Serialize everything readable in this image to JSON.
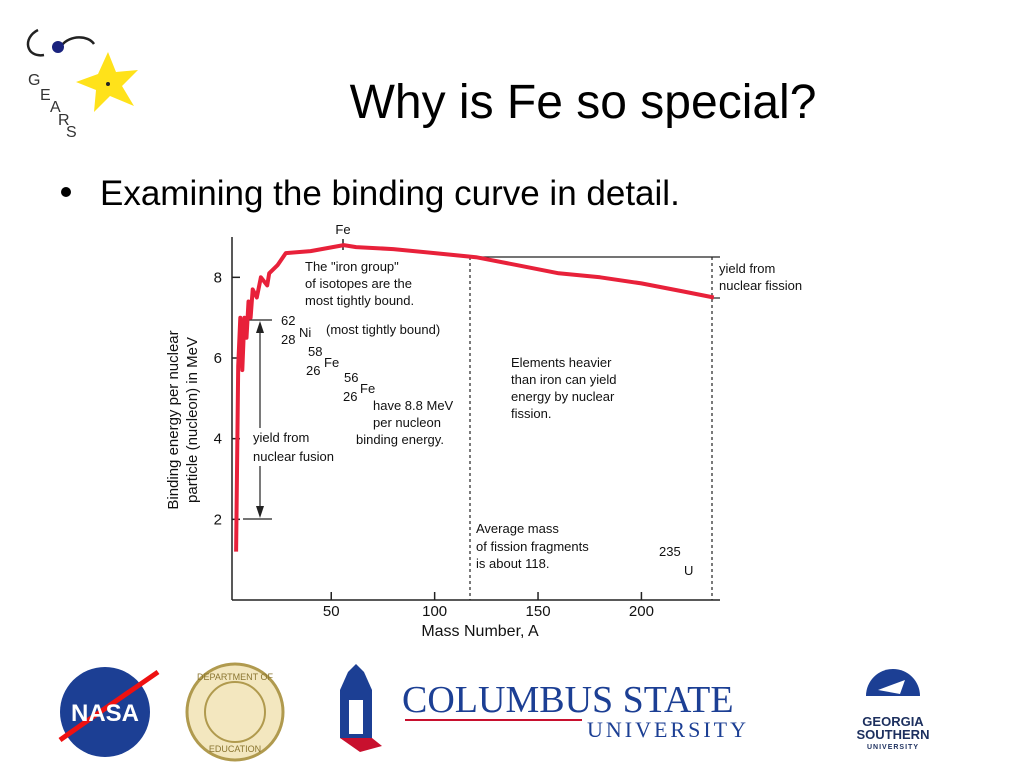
{
  "title": "Why is Fe so special?",
  "bullet": "Examining the binding curve in detail.",
  "chart_data": {
    "type": "line",
    "x": [
      4,
      5,
      6,
      7,
      8,
      9,
      10,
      11,
      12,
      14,
      16,
      19,
      20,
      24,
      28,
      40,
      56,
      62,
      80,
      100,
      120,
      140,
      160,
      180,
      200,
      220,
      235
    ],
    "values": [
      1.2,
      5.8,
      7.0,
      5.7,
      7.0,
      6.5,
      7.4,
      7.0,
      7.7,
      7.5,
      8.0,
      7.8,
      8.1,
      8.3,
      8.6,
      8.65,
      8.8,
      8.75,
      8.7,
      8.6,
      8.5,
      8.3,
      8.1,
      8.0,
      7.85,
      7.65,
      7.5
    ],
    "color": "#e8213a",
    "xlim": [
      2,
      238
    ],
    "ylim": [
      0,
      9
    ],
    "xticks": [
      50,
      100,
      150,
      200
    ],
    "yticks": [
      2,
      4,
      6,
      8
    ],
    "x_label": "Mass Number, A",
    "y_label": [
      "Binding energy per nuclear",
      "particle (nucleon) in MeV"
    ],
    "annotations": [
      "Fe",
      "The \"iron group\"",
      "of isotopes are the",
      "most tightly bound.",
      "62",
      "28",
      "Ni",
      "(most tightly bound)",
      "58",
      "26",
      "Fe",
      "56",
      "26",
      "Fe",
      "have 8.8 MeV",
      "per nucleon",
      "binding energy.",
      "yield from",
      "nuclear fusion",
      "Elements heavier",
      "than iron can yield",
      "energy by nuclear",
      "fission.",
      "Average mass",
      "of fission fragments",
      "is about 118.",
      "235",
      "U",
      "yield from",
      "nuclear fission"
    ]
  },
  "logos": {
    "gears": [
      "G",
      "E",
      "A",
      "R",
      "S"
    ],
    "nasa": "NASA",
    "seal": [
      "DEPARTMENT OF",
      "EDUCATION"
    ],
    "columbus": [
      "COLUMBUS STATE",
      "UNIVERSITY"
    ],
    "georgia_southern": [
      "GEORGIA",
      "SOUTHERN",
      "UNIVERSITY"
    ]
  }
}
